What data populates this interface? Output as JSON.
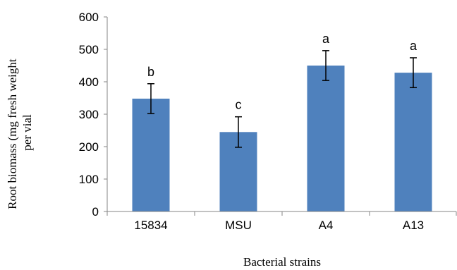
{
  "chart_data": {
    "type": "bar",
    "categories": [
      "15834",
      "MSU",
      "A4",
      "A13"
    ],
    "values": [
      348,
      245,
      450,
      428
    ],
    "error": [
      46,
      47,
      46,
      46
    ],
    "data_labels": [
      "b",
      "c",
      "a",
      "a"
    ],
    "xlabel": "Bacterial strains",
    "ylabel_lines": [
      "Root biomass (mg fresh weight",
      "per vial"
    ],
    "ylim": [
      0,
      600
    ],
    "yticks": [
      0,
      100,
      200,
      300,
      400,
      500,
      600
    ],
    "bar_color": "#4F81BD",
    "grid": false
  }
}
